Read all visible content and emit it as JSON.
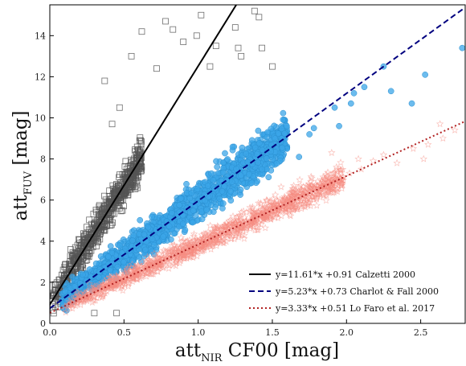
{
  "chart_data": {
    "type": "scatter",
    "xlabel_main": "att",
    "xlabel_sub": "NIR",
    "xlabel_rest": " CF00 [mag]",
    "ylabel_main": "att",
    "ylabel_sub": "FUV",
    "ylabel_rest": " [mag]",
    "xlim": [
      0.0,
      2.8
    ],
    "ylim": [
      0,
      15.5
    ],
    "xticks": [
      "0.0",
      "0.5",
      "1.0",
      "1.5",
      "2.0",
      "2.5"
    ],
    "xtick_values": [
      0.0,
      0.5,
      1.0,
      1.5,
      2.0,
      2.5
    ],
    "yticks": [
      "0",
      "2",
      "4",
      "6",
      "8",
      "10",
      "12",
      "14"
    ],
    "ytick_values": [
      0,
      2,
      4,
      6,
      8,
      10,
      12,
      14
    ],
    "grid": false,
    "legend_position": "lower-right",
    "scatter_series": [
      {
        "marker": "open-square",
        "color": "#555555",
        "slope": 11.61,
        "intercept": 0.91,
        "x_range": [
          0.02,
          0.62
        ],
        "spread": 0.55,
        "outliers": [
          [
            0.37,
            11.8
          ],
          [
            0.55,
            13.0
          ],
          [
            0.62,
            14.2
          ],
          [
            0.72,
            12.4
          ],
          [
            0.78,
            14.7
          ],
          [
            0.83,
            14.3
          ],
          [
            0.9,
            13.7
          ],
          [
            0.99,
            14.0
          ],
          [
            1.02,
            15.0
          ],
          [
            1.08,
            12.5
          ],
          [
            1.12,
            13.5
          ],
          [
            1.25,
            14.4
          ],
          [
            1.27,
            13.4
          ],
          [
            1.29,
            13.0
          ],
          [
            1.38,
            15.2
          ],
          [
            1.41,
            14.9
          ],
          [
            1.43,
            13.4
          ],
          [
            1.5,
            12.5
          ],
          [
            0.42,
            9.7
          ],
          [
            0.47,
            10.5
          ],
          [
            0.3,
            0.5
          ],
          [
            0.45,
            0.5
          ],
          [
            0.14,
            3.6
          ],
          [
            0.09,
            2.6
          ]
        ]
      },
      {
        "marker": "filled-circle",
        "color": "#3ba6e8",
        "slope": 5.23,
        "intercept": 0.73,
        "x_range": [
          0.08,
          1.6
        ],
        "spread": 0.45,
        "outliers": [
          [
            1.75,
            9.2
          ],
          [
            1.78,
            9.5
          ],
          [
            1.92,
            10.5
          ],
          [
            1.95,
            9.6
          ],
          [
            2.03,
            10.7
          ],
          [
            2.05,
            11.2
          ],
          [
            2.12,
            11.5
          ],
          [
            2.25,
            12.5
          ],
          [
            2.3,
            11.3
          ],
          [
            2.44,
            10.7
          ],
          [
            2.53,
            12.1
          ],
          [
            2.78,
            13.4
          ],
          [
            1.68,
            8.1
          ]
        ]
      },
      {
        "marker": "open-star",
        "color": "#f58d82",
        "slope": 3.33,
        "intercept": 0.51,
        "x_range": [
          0.1,
          1.98
        ],
        "spread": 0.25,
        "outliers": [
          [
            2.02,
            7.3
          ],
          [
            2.1,
            7.5
          ],
          [
            2.18,
            7.9
          ],
          [
            2.25,
            8.2
          ],
          [
            2.34,
            7.8
          ],
          [
            2.45,
            8.5
          ],
          [
            2.55,
            8.7
          ],
          [
            2.65,
            9.0
          ],
          [
            2.73,
            9.4
          ],
          [
            2.52,
            8.0
          ],
          [
            2.63,
            9.7
          ],
          [
            1.9,
            8.3
          ],
          [
            2.08,
            8.0
          ]
        ]
      }
    ],
    "series": [
      {
        "name": "y=11.61*x +0.91 Calzetti 2000",
        "slope": 11.61,
        "intercept": 0.91,
        "color": "#000000",
        "style": "solid"
      },
      {
        "name": "y=5.23*x +0.73 Charlot & Fall 2000",
        "slope": 5.23,
        "intercept": 0.73,
        "color": "#00007f",
        "style": "dashed"
      },
      {
        "name": "y=3.33*x +0.51 Lo Faro et al. 2017",
        "slope": 3.33,
        "intercept": 0.51,
        "color": "#b22222",
        "style": "dotted"
      }
    ]
  }
}
